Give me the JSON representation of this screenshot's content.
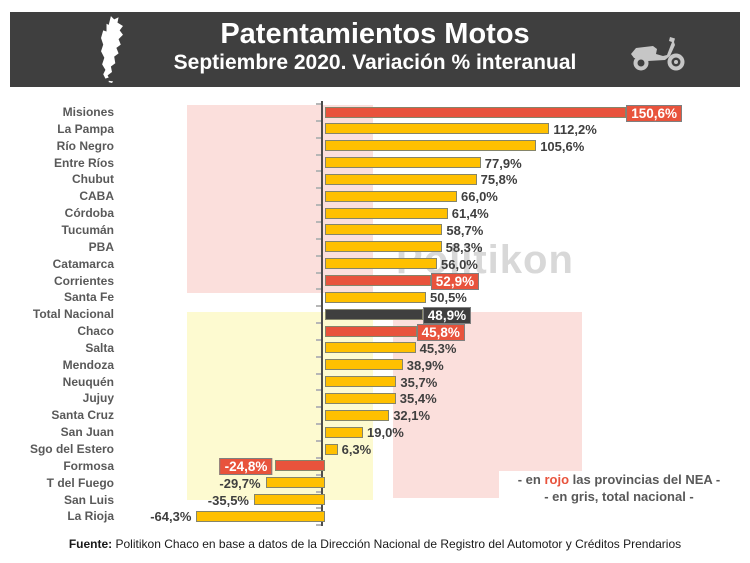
{
  "header": {
    "title": "Patentamientos Motos",
    "subtitle": "Septiembre 2020. Variación % interanual",
    "left_icon": "argentina-map-icon",
    "right_icon": "scooter-icon"
  },
  "watermark": "Politikon",
  "legend": {
    "line1_pre": "- en ",
    "line1_red": "rojo",
    "line1_post": " las provincias del NEA -",
    "line2": "- en gris, total nacional -"
  },
  "footer": {
    "label": "Fuente:",
    "text": " Politikon Chaco en base a datos de la Dirección Nacional de Registro del Automotor y Créditos Prendarios"
  },
  "colors": {
    "header_bg": "#3F3F3F",
    "bar_gold": "#FFC000",
    "bar_red_nea": "#E8533C",
    "bar_dark_national": "#3F3F3F",
    "highlight_pink": "#FBDFDC",
    "highlight_yellow": "#FDFAD0",
    "text_gray": "#595959",
    "watermark_gray": "#D8D8D8"
  },
  "chart_data": {
    "type": "bar",
    "orientation": "horizontal",
    "title": "Patentamientos Motos",
    "subtitle": "Septiembre 2020. Variación % interanual",
    "unit": "%",
    "decimal_style": "comma",
    "axis": {
      "zero_line": true,
      "value_tick_labels": false
    },
    "color_legend": {
      "red": "provincias del NEA",
      "gris": "total nacional"
    },
    "categories": [
      "Misiones",
      "La Pampa",
      "Río Negro",
      "Entre Ríos",
      "Chubut",
      "CABA",
      "Córdoba",
      "Tucumán",
      "PBA",
      "Catamarca",
      "Corrientes",
      "Santa Fe",
      "Total Nacional",
      "Chaco",
      "Salta",
      "Mendoza",
      "Neuquén",
      "Jujuy",
      "Santa Cruz",
      "San Juan",
      "Sgo del Estero",
      "Formosa",
      "T del Fuego",
      "San Luis",
      "La Rioja"
    ],
    "values": [
      150.6,
      112.2,
      105.6,
      77.9,
      75.8,
      66.0,
      61.4,
      58.7,
      58.3,
      56.0,
      52.9,
      50.5,
      48.9,
      45.8,
      45.3,
      38.9,
      35.7,
      35.4,
      32.1,
      19.0,
      6.3,
      -24.8,
      -29.7,
      -35.5,
      -64.3
    ],
    "items": [
      {
        "label": "Misiones",
        "value": 150.6,
        "display": "150,6%",
        "color": "red"
      },
      {
        "label": "La Pampa",
        "value": 112.2,
        "display": "112,2%",
        "color": "gold"
      },
      {
        "label": "Río Negro",
        "value": 105.6,
        "display": "105,6%",
        "color": "gold"
      },
      {
        "label": "Entre Ríos",
        "value": 77.9,
        "display": "77,9%",
        "color": "gold"
      },
      {
        "label": "Chubut",
        "value": 75.8,
        "display": "75,8%",
        "color": "gold"
      },
      {
        "label": "CABA",
        "value": 66.0,
        "display": "66,0%",
        "color": "gold"
      },
      {
        "label": "Córdoba",
        "value": 61.4,
        "display": "61,4%",
        "color": "gold"
      },
      {
        "label": "Tucumán",
        "value": 58.7,
        "display": "58,7%",
        "color": "gold"
      },
      {
        "label": "PBA",
        "value": 58.3,
        "display": "58,3%",
        "color": "gold"
      },
      {
        "label": "Catamarca",
        "value": 56.0,
        "display": "56,0%",
        "color": "gold"
      },
      {
        "label": "Corrientes",
        "value": 52.9,
        "display": "52,9%",
        "color": "red"
      },
      {
        "label": "Santa Fe",
        "value": 50.5,
        "display": "50,5%",
        "color": "gold"
      },
      {
        "label": "Total Nacional",
        "value": 48.9,
        "display": "48,9%",
        "color": "dark"
      },
      {
        "label": "Chaco",
        "value": 45.8,
        "display": "45,8%",
        "color": "red"
      },
      {
        "label": "Salta",
        "value": 45.3,
        "display": "45,3%",
        "color": "gold"
      },
      {
        "label": "Mendoza",
        "value": 38.9,
        "display": "38,9%",
        "color": "gold"
      },
      {
        "label": "Neuquén",
        "value": 35.7,
        "display": "35,7%",
        "color": "gold"
      },
      {
        "label": "Jujuy",
        "value": 35.4,
        "display": "35,4%",
        "color": "gold"
      },
      {
        "label": "Santa Cruz",
        "value": 32.1,
        "display": "32,1%",
        "color": "gold"
      },
      {
        "label": "San Juan",
        "value": 19.0,
        "display": "19,0%",
        "color": "gold"
      },
      {
        "label": "Sgo del Estero",
        "value": 6.3,
        "display": "6,3%",
        "color": "gold"
      },
      {
        "label": "Formosa",
        "value": -24.8,
        "display": "-24,8%",
        "color": "red"
      },
      {
        "label": "T del Fuego",
        "value": -29.7,
        "display": "-29,7%",
        "color": "gold"
      },
      {
        "label": "San Luis",
        "value": -35.5,
        "display": "-35,5%",
        "color": "gold"
      },
      {
        "label": "La Rioja",
        "value": -64.3,
        "display": "-64,3%",
        "color": "gold"
      }
    ]
  }
}
